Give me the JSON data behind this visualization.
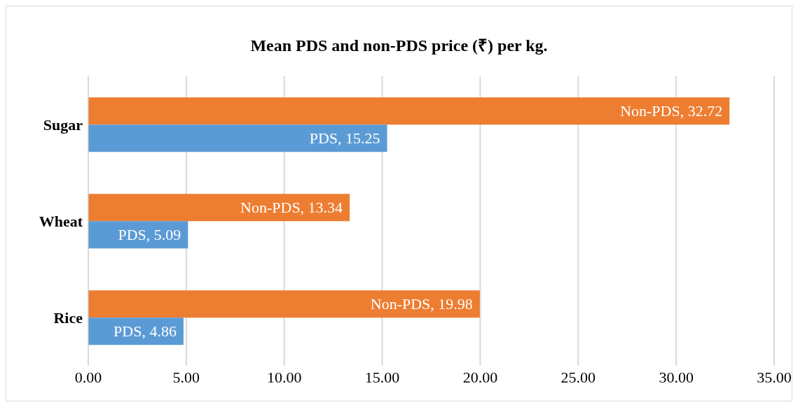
{
  "chart_data": {
    "type": "bar",
    "orientation": "horizontal",
    "title": "Mean PDS and non-PDS price (₹) per kg.",
    "categories": [
      "Sugar",
      "Wheat",
      "Rice"
    ],
    "series": [
      {
        "color": "#ed7d31",
        "values": [
          32.72,
          13.34,
          19.98
        ],
        "value_labels": [
          "Non-PDS, 32.72",
          "Non-PDS, 13.34",
          "Non-PDS, 19.98"
        ]
      },
      {
        "color": "#5b9bd5",
        "values": [
          15.25,
          5.09,
          4.86
        ],
        "value_labels": [
          "PDS, 15.25",
          "PDS, 5.09",
          "PDS, 4.86"
        ]
      }
    ],
    "xlim": [
      0,
      35
    ],
    "xticks": [
      {
        "value": 0,
        "label": "0.00"
      },
      {
        "value": 5,
        "label": "5.00"
      },
      {
        "value": 10,
        "label": "10.00"
      },
      {
        "value": 15,
        "label": "15.00"
      },
      {
        "value": 20,
        "label": "20.00"
      },
      {
        "value": 25,
        "label": "25.00"
      },
      {
        "value": 30,
        "label": "30.00"
      },
      {
        "value": 35,
        "label": "35.00"
      }
    ],
    "grid": "x",
    "legend": false
  }
}
